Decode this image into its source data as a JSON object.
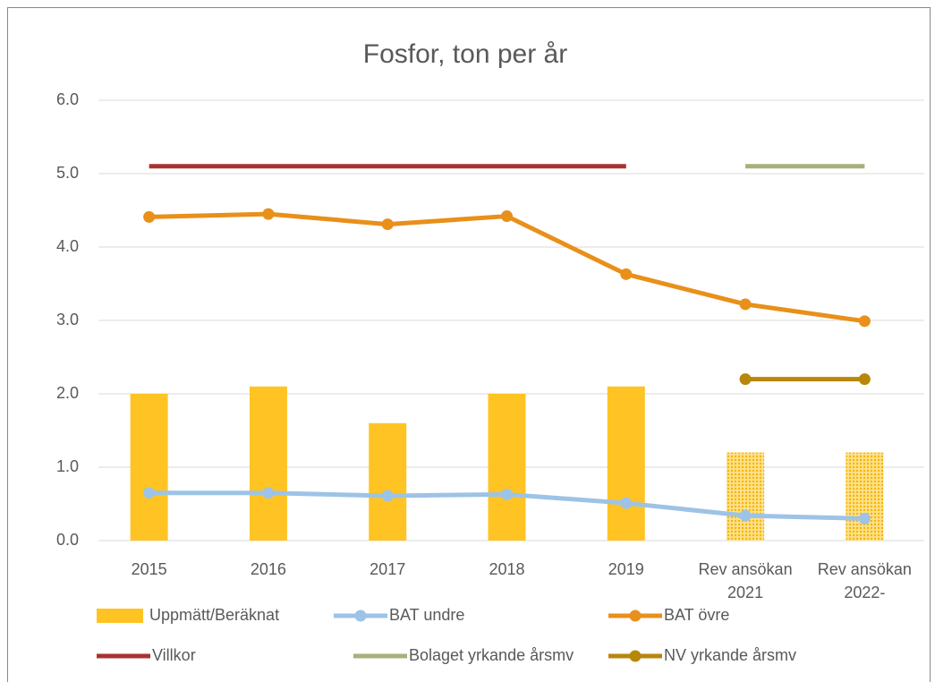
{
  "chart_data": {
    "type": "bar",
    "title": "Fosfor, ton per år",
    "categories": [
      "2015",
      "2016",
      "2017",
      "2018",
      "2019",
      "Rev ansökan 2021",
      "Rev ansökan 2022-"
    ],
    "ylim": [
      0,
      6
    ],
    "yticks": [
      {
        "value": 0,
        "label": "0.0"
      },
      {
        "value": 1,
        "label": "1.0"
      },
      {
        "value": 2,
        "label": "2.0"
      },
      {
        "value": 3,
        "label": "3.0"
      },
      {
        "value": 4,
        "label": "4.0"
      },
      {
        "value": 5,
        "label": "5.0"
      },
      {
        "value": 6,
        "label": "6.0"
      }
    ],
    "grid": true,
    "legend": "bottom",
    "series": [
      {
        "name": "Uppmätt/Beräknat",
        "type": "bar",
        "color": "#FFC423",
        "values": [
          2.0,
          2.1,
          1.6,
          2.0,
          2.1,
          1.2,
          1.2
        ],
        "hatch": [
          false,
          false,
          false,
          false,
          false,
          true,
          true
        ]
      },
      {
        "name": "BAT undre",
        "type": "line",
        "markers": true,
        "color": "#9DC3E6",
        "values": [
          0.65,
          0.65,
          0.61,
          0.63,
          0.51,
          0.34,
          0.3
        ]
      },
      {
        "name": "BAT övre",
        "type": "line",
        "markers": true,
        "color": "#E8901A",
        "values": [
          4.41,
          4.45,
          4.31,
          4.42,
          3.63,
          3.22,
          2.99
        ]
      },
      {
        "name": "Villkor",
        "type": "line",
        "markers": false,
        "color": "#A93232",
        "values": [
          5.1,
          5.1,
          5.1,
          5.1,
          5.1,
          null,
          null
        ]
      },
      {
        "name": "Bolaget yrkande årsmv",
        "type": "line",
        "markers": false,
        "color": "#A9AF7A",
        "values": [
          null,
          null,
          null,
          null,
          null,
          5.1,
          5.1
        ]
      },
      {
        "name": "NV yrkande årsmv",
        "type": "line",
        "markers": true,
        "color": "#B8860B",
        "values": [
          null,
          null,
          null,
          null,
          null,
          2.2,
          2.2
        ]
      }
    ]
  }
}
